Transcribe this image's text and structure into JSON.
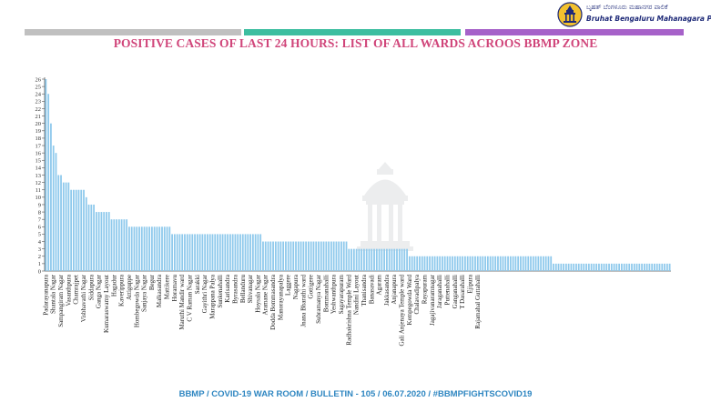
{
  "header": {
    "logo_kannada": "ಬೃಹತ್ ಬೆಂಗಳೂರು ಮಹಾನಗರ ಪಾಲಿಕೆ",
    "logo_english": "Bruhat Bengaluru Mahanagara Palike",
    "logo_icon": "bbmp-emblem-icon",
    "strip_colors": [
      "#c0c0c0",
      "#3dbea0",
      "#a661c9"
    ]
  },
  "title": "POSITIVE CASES OF LAST 24 HOURS: LIST OF ALL WARDS ACROOS BBMP ZONE",
  "footer": "BBMP / COVID-19 WAR ROOM / BULLETIN - 105 / 06.07.2020 / #BBMPFIGHTSCOVID19",
  "colors": {
    "bar": "#8ec9ec",
    "title": "#d0457a",
    "footer": "#2e86c1"
  },
  "chart_data": {
    "type": "bar",
    "title": "POSITIVE CASES OF LAST 24 HOURS: LIST OF ALL WARDS ACROOS BBMP ZONE",
    "ylim": [
      0,
      26
    ],
    "yticks": [
      0,
      1,
      2,
      3,
      4,
      5,
      6,
      7,
      8,
      9,
      10,
      11,
      12,
      13,
      14,
      15,
      16,
      17,
      18,
      19,
      20,
      21,
      22,
      23,
      24,
      25,
      26
    ],
    "grid": false,
    "label_every": 3,
    "x_labels": [
      "Padarayanapura",
      "Shantala Nagar",
      "Sampangiram Nagar",
      "Vasanthpura",
      "Chamrajpet",
      "Visbhavathi Nagar",
      "Siddapura",
      "Ganga Nagar",
      "Kumaraswamy Layout",
      "Hagadur",
      "Kaverippura",
      "Attiguppe",
      "Hombegowda Nagar",
      "Sanjaya Nagar",
      "Begur",
      "Malkasandra",
      "Mattikere",
      "Horamavu",
      "Maruthi Mandir ward",
      "C V Raman Nagar",
      "Sarakki",
      "Gayithri Nagar",
      "Marappana Palya",
      "Sunkenahalli",
      "Karisandra",
      "Byrasandra",
      "Bellanduru",
      "Shivanagar",
      "Hoysala Nagar",
      "Aramane Nagar",
      "Dodda Bommasandra",
      "Manorayanapalya",
      "Laggere",
      "Nagapura",
      "Jnana Bharathi ward",
      "Gottigere",
      "Subramanya Nagar",
      "Bommanahalli",
      "Yeshwanthpura",
      "Sagayarapuram",
      "Radhakrishna Temple Ward",
      "Nandini Layout",
      "Thanisandra",
      "Banasavadi",
      "Agaram",
      "Jakkasandra",
      "Anjanapura",
      "Gali Anjenaya Temple ward",
      "Kempegowda Ward",
      "Chalavadipalya",
      "Rayapuram",
      "Jagajivanaramnagar",
      "Jaraganahalli",
      "Puttenahalli",
      "Ganganahalli",
      "T Dasarahalli",
      "Ejipura",
      "Rajamahal Guttahalli"
    ],
    "values": [
      26,
      24,
      20,
      17,
      16,
      13,
      13,
      12,
      12,
      12,
      11,
      11,
      11,
      11,
      11,
      11,
      10,
      9,
      9,
      9,
      8,
      8,
      8,
      8,
      8,
      8,
      7,
      7,
      7,
      7,
      7,
      7,
      7,
      6,
      6,
      6,
      6,
      6,
      6,
      6,
      6,
      6,
      6,
      6,
      6,
      6,
      6,
      6,
      6,
      6,
      5,
      5,
      5,
      5,
      5,
      5,
      5,
      5,
      5,
      5,
      5,
      5,
      5,
      5,
      5,
      5,
      5,
      5,
      5,
      5,
      5,
      5,
      5,
      5,
      5,
      5,
      5,
      5,
      5,
      5,
      5,
      5,
      5,
      5,
      5,
      5,
      4,
      4,
      4,
      4,
      4,
      4,
      4,
      4,
      4,
      4,
      4,
      4,
      4,
      4,
      4,
      4,
      4,
      4,
      4,
      4,
      4,
      4,
      4,
      4,
      4,
      4,
      4,
      4,
      4,
      4,
      4,
      4,
      4,
      4,
      3,
      3,
      3,
      3,
      3,
      3,
      3,
      3,
      3,
      3,
      3,
      3,
      3,
      3,
      3,
      3,
      3,
      3,
      3,
      3,
      3,
      3,
      3,
      3,
      2,
      2,
      2,
      2,
      2,
      2,
      2,
      2,
      2,
      2,
      2,
      2,
      2,
      2,
      2,
      2,
      2,
      2,
      2,
      2,
      2,
      2,
      2,
      2,
      2,
      2,
      2,
      2,
      2,
      2,
      2,
      2,
      2,
      2,
      2,
      2,
      2,
      2,
      2,
      2,
      2,
      2,
      2,
      2,
      2,
      2,
      2,
      2,
      2,
      2,
      2,
      2,
      2,
      2,
      2,
      2,
      2,
      1,
      1,
      1,
      1,
      1,
      1,
      1,
      1,
      1,
      1,
      1,
      1,
      1,
      1,
      1,
      1,
      1,
      1,
      1,
      1,
      1,
      1,
      1,
      1,
      1,
      1,
      1,
      1,
      1,
      1,
      1,
      1,
      1,
      1,
      1,
      1,
      1,
      1,
      1,
      1,
      1,
      1,
      1,
      1,
      1,
      1,
      1
    ]
  }
}
